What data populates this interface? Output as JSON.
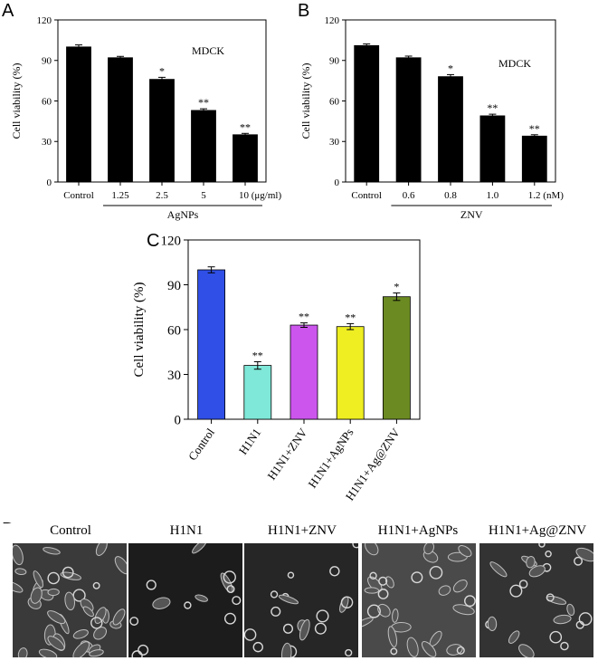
{
  "panels": {
    "A": {
      "label": "A",
      "chart_data": {
        "type": "bar",
        "categories": [
          "Control",
          "1.25",
          "2.5",
          "5",
          "10 (μg/ml)"
        ],
        "values": [
          100,
          92,
          76,
          53,
          35
        ],
        "errors": [
          1.5,
          1,
          1.5,
          1.2,
          1
        ],
        "significance": [
          "",
          "",
          "*",
          "**",
          "**"
        ],
        "annotation": "MDCK",
        "group_label": "AgNPs",
        "xlabel": "",
        "ylabel": "Cell viability (%)",
        "yticks": [
          0,
          30,
          60,
          90,
          120
        ],
        "ylim": [
          0,
          120
        ],
        "bar_color": "#000000"
      }
    },
    "B": {
      "label": "B",
      "chart_data": {
        "type": "bar",
        "categories": [
          "Control",
          "0.6",
          "0.8",
          "1.0",
          "1.2 (nM)"
        ],
        "values": [
          101,
          92,
          78,
          49,
          34
        ],
        "errors": [
          1.2,
          1.2,
          1.5,
          1.2,
          1
        ],
        "significance": [
          "",
          "",
          "*",
          "**",
          "**"
        ],
        "annotation": "MDCK",
        "group_label": "ZNV",
        "xlabel": "",
        "ylabel": "Cell viability (%)",
        "yticks": [
          0,
          30,
          60,
          90,
          120
        ],
        "ylim": [
          0,
          120
        ],
        "bar_color": "#000000"
      }
    },
    "C": {
      "label": "C",
      "chart_data": {
        "type": "bar",
        "categories": [
          "Control",
          "H1N1",
          "H1N1+ZNV",
          "H1N1+AgNPs",
          "H1N1+Ag@ZNV"
        ],
        "values": [
          100,
          36,
          63,
          62,
          82
        ],
        "errors": [
          2,
          2.5,
          1.5,
          2,
          2.5
        ],
        "significance": [
          "",
          "**",
          "**",
          "**",
          "*"
        ],
        "colors": [
          "#2f4fe6",
          "#7fe8d8",
          "#cc55ee",
          "#eeee22",
          "#6b8a22"
        ],
        "xlabel": "",
        "ylabel": "Cell viability (%)",
        "yticks": [
          0,
          30,
          60,
          90,
          120
        ],
        "ylim": [
          0,
          120
        ]
      }
    },
    "D": {
      "label": "D",
      "images": [
        "Control",
        "H1N1",
        "H1N1+ZNV",
        "H1N1+AgNPs",
        "H1N1+Ag@ZNV"
      ]
    }
  }
}
